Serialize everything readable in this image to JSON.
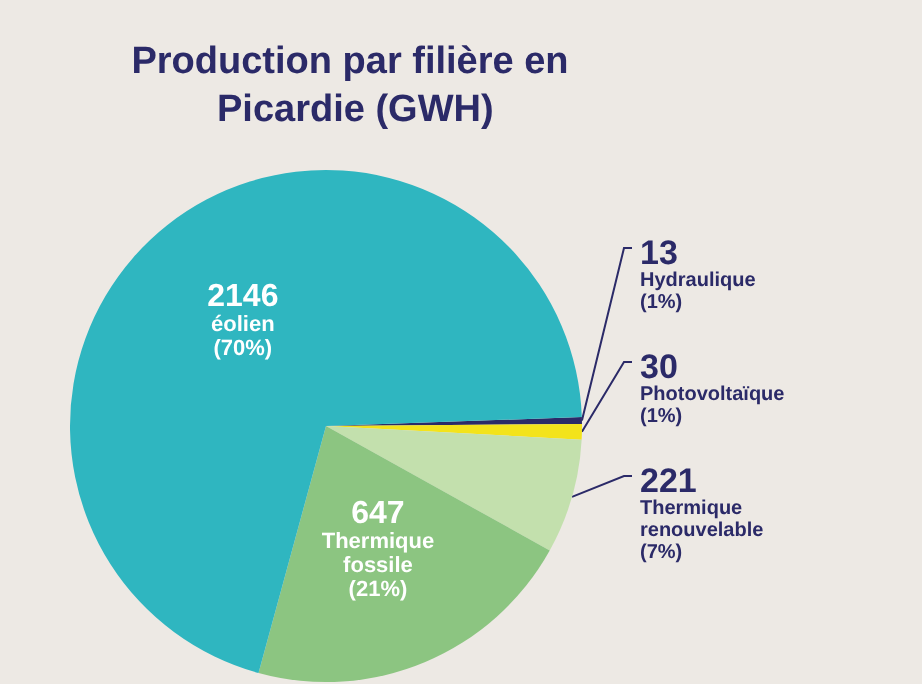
{
  "chart_data": {
    "type": "pie",
    "title": "Production par filière en Picardie (GWH)",
    "categories": [
      "Hydraulique (1%)",
      "Photovoltaïque (1%)",
      "Thermique renouvelable (7%)",
      "Thermique fossile (21%)",
      "éolien (70%)"
    ],
    "values": [
      13,
      30,
      221,
      647,
      2146
    ],
    "colors": [
      "#2b2a68",
      "#f3e31b",
      "#c3e0ad",
      "#8cc581",
      "#2fb6c0"
    ],
    "data_labels": true,
    "legend": false
  }
}
